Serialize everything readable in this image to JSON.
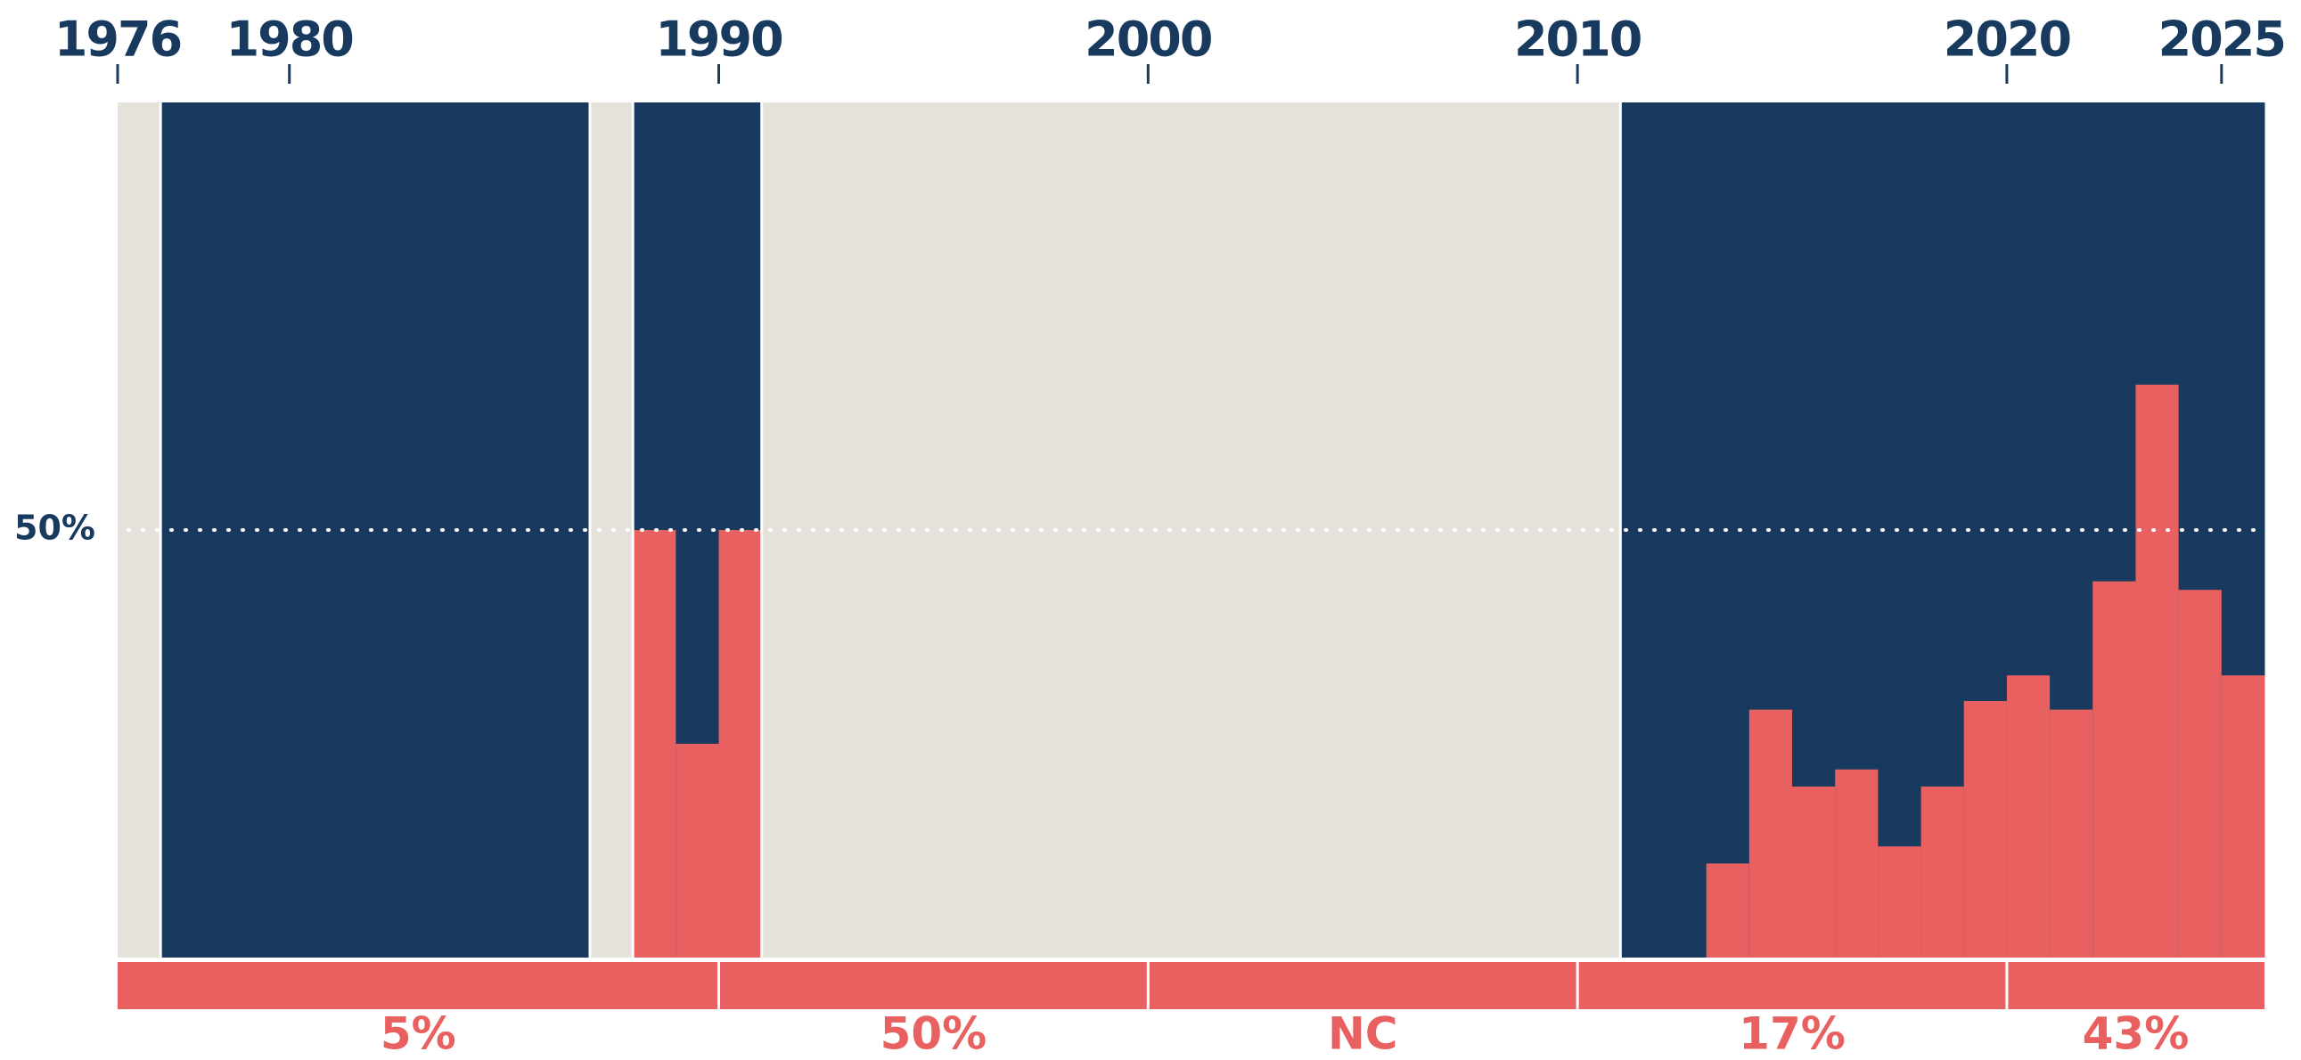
{
  "chart_data": {
    "type": "bar",
    "x": [
      1976,
      1977,
      1978,
      1979,
      1980,
      1981,
      1982,
      1983,
      1984,
      1985,
      1986,
      1987,
      1988,
      1989,
      1990,
      1991,
      1992,
      1993,
      1994,
      1995,
      1996,
      1997,
      1998,
      1999,
      2000,
      2001,
      2002,
      2003,
      2004,
      2005,
      2006,
      2007,
      2008,
      2009,
      2010,
      2011,
      2012,
      2013,
      2014,
      2015,
      2016,
      2017,
      2018,
      2019,
      2020,
      2021,
      2022,
      2023,
      2024,
      2025
    ],
    "values": [
      null,
      0,
      0,
      0,
      0,
      0,
      0,
      0,
      0,
      0,
      0,
      null,
      50,
      25,
      50,
      null,
      null,
      null,
      null,
      null,
      null,
      null,
      null,
      null,
      null,
      null,
      null,
      null,
      null,
      null,
      null,
      null,
      null,
      null,
      null,
      0,
      0,
      11,
      29,
      20,
      22,
      13,
      20,
      30,
      33,
      29,
      44,
      67,
      43,
      33
    ],
    "color": "#e8605f",
    "background_color": "#173a5e",
    "missing_color": "#e5e2dc",
    "xticks": [
      1976,
      1980,
      1990,
      2000,
      2010,
      2020,
      2025
    ],
    "ylim": [
      0,
      100
    ],
    "yticks": [
      {
        "value": 50,
        "label": "50%"
      }
    ],
    "grid": true,
    "periods": {
      "starts": [
        1976,
        1990,
        2000,
        2010,
        2020
      ],
      "values": [
        5,
        50,
        null,
        17,
        43
      ],
      "value_labels": [
        "5%",
        "50%",
        "NC",
        "17%",
        "43%"
      ]
    }
  }
}
